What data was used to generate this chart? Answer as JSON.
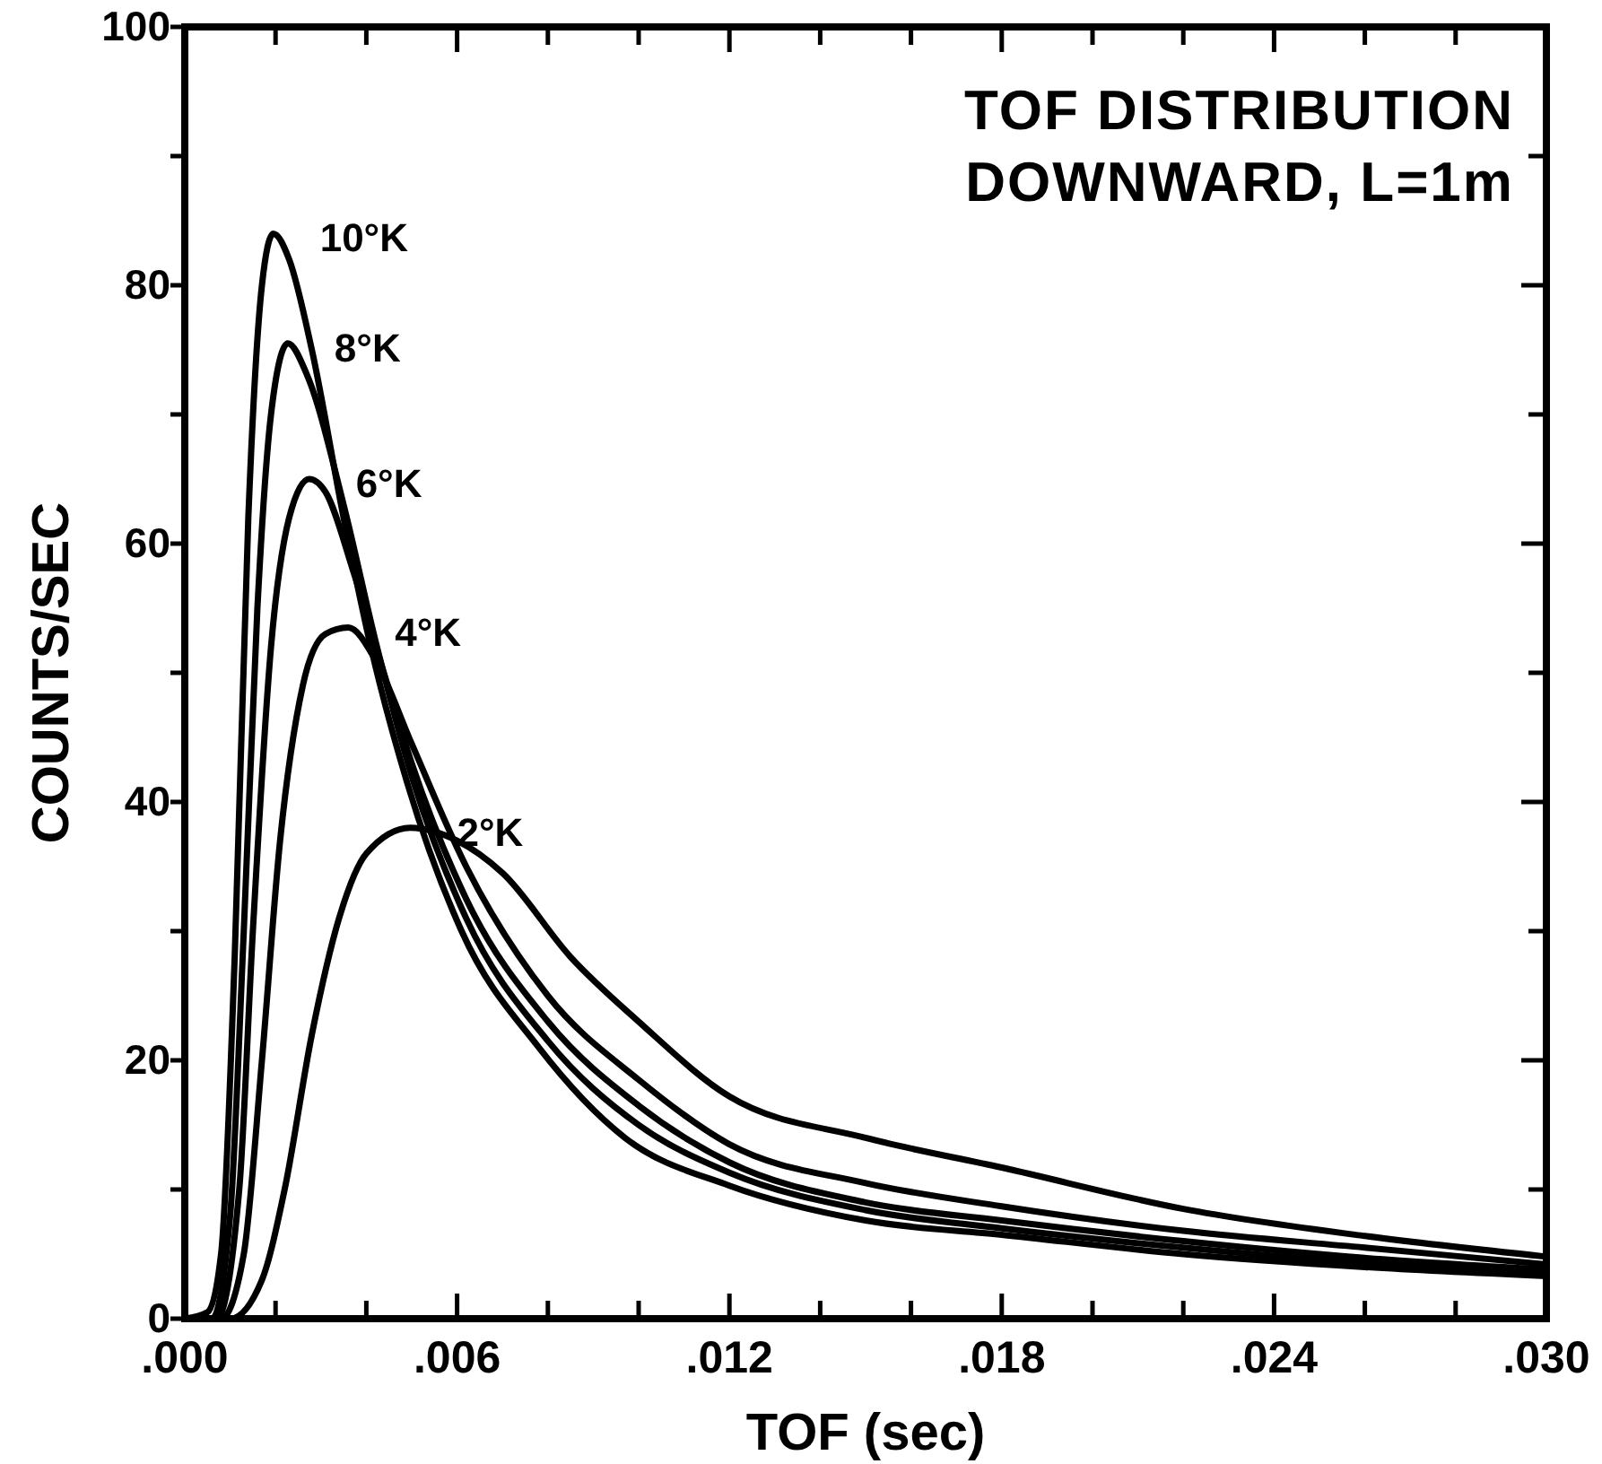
{
  "chart_data": {
    "type": "line",
    "title": "TOF DISTRIBUTION",
    "subtitle": "DOWNWARD, L=1m",
    "xlabel": "TOF (sec)",
    "ylabel": "COUNTS/SEC",
    "xlim": [
      0,
      0.03
    ],
    "ylim": [
      0,
      100
    ],
    "xticks": [
      {
        "value": 0,
        "label": ".000"
      },
      {
        "value": 0.002,
        "label": null
      },
      {
        "value": 0.004,
        "label": null
      },
      {
        "value": 0.006,
        "label": ".006"
      },
      {
        "value": 0.008,
        "label": null
      },
      {
        "value": 0.01,
        "label": null
      },
      {
        "value": 0.012,
        "label": ".012"
      },
      {
        "value": 0.014,
        "label": null
      },
      {
        "value": 0.016,
        "label": null
      },
      {
        "value": 0.018,
        "label": ".018"
      },
      {
        "value": 0.02,
        "label": null
      },
      {
        "value": 0.022,
        "label": null
      },
      {
        "value": 0.024,
        "label": ".024"
      },
      {
        "value": 0.026,
        "label": null
      },
      {
        "value": 0.028,
        "label": null
      },
      {
        "value": 0.03,
        "label": ".030"
      }
    ],
    "yticks": [
      0,
      {
        "value": 10,
        "label": null
      },
      20,
      {
        "value": 30,
        "label": null
      },
      40,
      {
        "value": 50,
        "label": null
      },
      60,
      {
        "value": 70,
        "label": null
      },
      80,
      {
        "value": 90,
        "label": null
      },
      100
    ],
    "grid": false,
    "legend": false,
    "marker": "none",
    "line_style": "solid",
    "series": [
      {
        "name": "10°K",
        "color": "#000000",
        "x": [
          0,
          0.0005,
          0.0008,
          0.0011,
          0.0014,
          0.0017,
          0.00195,
          0.0023,
          0.0028,
          0.0035,
          0.0041,
          0.0049,
          0.0061,
          0.0078,
          0.0097,
          0.012,
          0.015,
          0.018,
          0.022,
          0.026,
          0.03
        ],
        "values": [
          0,
          0.5,
          5,
          28,
          62,
          80,
          84,
          82,
          75,
          62,
          52,
          41.5,
          30,
          21,
          14,
          10.3,
          7.6,
          6.5,
          5,
          4,
          3.3
        ]
      },
      {
        "name": "8°K",
        "color": "#000000",
        "x": [
          0,
          0.0006,
          0.001,
          0.0013,
          0.0016,
          0.0019,
          0.00227,
          0.0027,
          0.0035,
          0.0042,
          0.005,
          0.0062,
          0.008,
          0.01,
          0.012,
          0.015,
          0.018,
          0.022,
          0.026,
          0.03
        ],
        "values": [
          0,
          0,
          8,
          30,
          55,
          70,
          75.5,
          73,
          63,
          52.5,
          42,
          31,
          21.5,
          15,
          11.3,
          8.4,
          7,
          5.5,
          4.3,
          3.5
        ]
      },
      {
        "name": "6°K",
        "color": "#000000",
        "x": [
          0,
          0.0007,
          0.0012,
          0.0015,
          0.0019,
          0.0023,
          0.00274,
          0.0031,
          0.0037,
          0.0043,
          0.005,
          0.0062,
          0.008,
          0.01,
          0.012,
          0.015,
          0.018,
          0.022,
          0.026,
          0.03
        ],
        "values": [
          0,
          0,
          10,
          30,
          52,
          62,
          65,
          64,
          58,
          51,
          43,
          32.5,
          23,
          16.5,
          12.1,
          9,
          7.6,
          6,
          4.7,
          3.8
        ]
      },
      {
        "name": "4°K",
        "color": "#000000",
        "x": [
          0,
          0.0008,
          0.0013,
          0.0017,
          0.0021,
          0.0026,
          0.0031,
          0.0036,
          0.0042,
          0.005,
          0.0062,
          0.008,
          0.01,
          0.012,
          0.015,
          0.018,
          0.022,
          0.026,
          0.03
        ],
        "values": [
          0,
          0,
          5,
          20,
          37,
          49,
          53,
          53.5,
          51,
          44.5,
          35,
          25,
          18.5,
          13.5,
          10.5,
          8.7,
          6.8,
          5.5,
          4.2
        ]
      },
      {
        "name": "2°K",
        "color": "#000000",
        "x": [
          0,
          0.001,
          0.0017,
          0.0022,
          0.0028,
          0.0034,
          0.004,
          0.00497,
          0.006,
          0.007,
          0.0085,
          0.01,
          0.012,
          0.015,
          0.018,
          0.022,
          0.026,
          0.03
        ],
        "values": [
          0,
          0,
          3,
          10,
          22,
          31,
          36,
          38,
          37,
          34.5,
          28,
          23,
          17.2,
          14,
          11.7,
          8.5,
          6.4,
          4.8
        ]
      }
    ]
  }
}
